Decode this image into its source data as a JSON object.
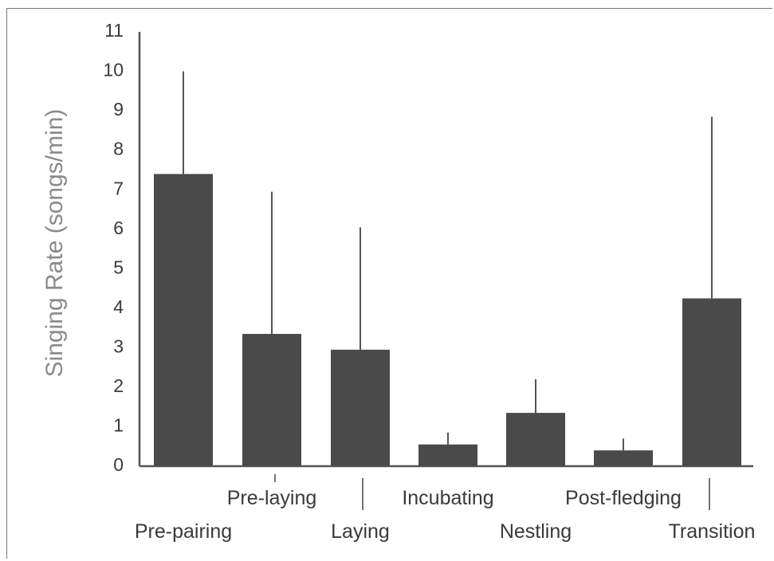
{
  "chart_data": {
    "type": "bar",
    "title": "",
    "xlabel": "",
    "ylabel": "Singing Rate (songs/min)",
    "ylim": [
      0,
      11
    ],
    "yticks": [
      "0",
      "1",
      "2",
      "3",
      "4",
      "5",
      "6",
      "7",
      "8",
      "9",
      "10",
      "11"
    ],
    "grid": false,
    "legend": "none",
    "bar_color": "#4a4a4a",
    "categories": [
      "Pre-pairing",
      "Pre-laying",
      "Laying",
      "Incubating",
      "Nestling",
      "Post-fledging",
      "Transition"
    ],
    "series": [
      {
        "values": [
          7.4,
          3.35,
          2.95,
          0.55,
          1.35,
          0.4,
          4.25
        ],
        "error_upper": [
          10.0,
          6.95,
          6.05,
          0.85,
          2.2,
          0.7,
          8.85
        ]
      }
    ]
  }
}
